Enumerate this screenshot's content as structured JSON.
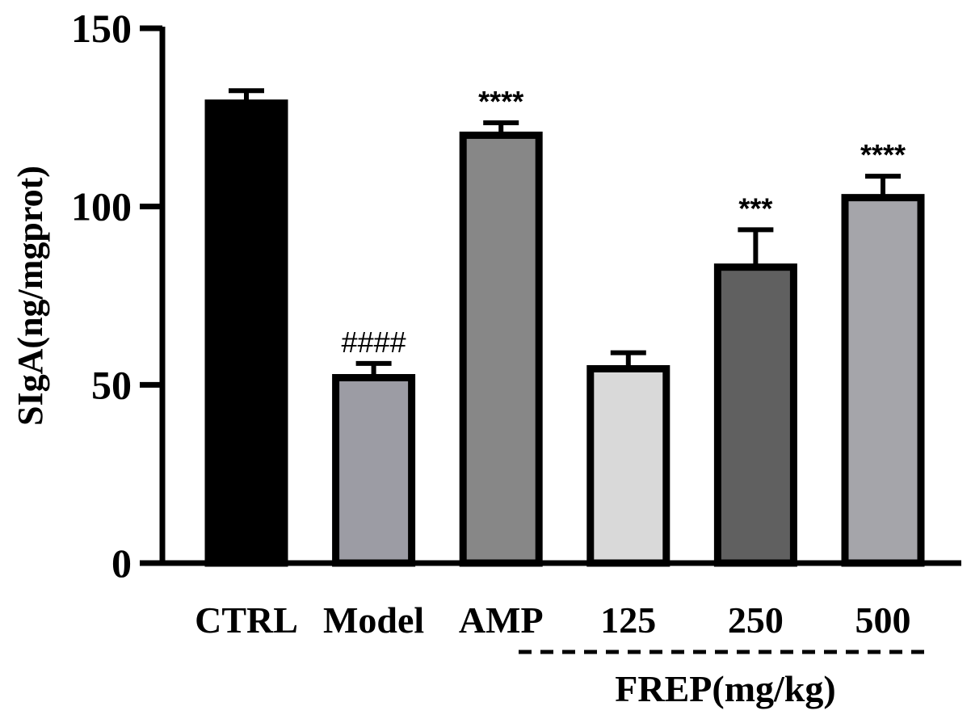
{
  "chart_data": {
    "type": "bar",
    "ylabel": "SIgA(ng/mgprot)",
    "ylim": [
      0,
      150
    ],
    "yticks": [
      0,
      50,
      100,
      150
    ],
    "categories": [
      "CTRL",
      "Model",
      "AMP",
      "125",
      "250",
      "500"
    ],
    "values": [
      129,
      52,
      120,
      54.5,
      83,
      102.5
    ],
    "errors": [
      3.5,
      4,
      3.5,
      4.5,
      10.5,
      6
    ],
    "colors": [
      "#000000",
      "#9c9ca4",
      "#878787",
      "#d9d9d9",
      "#606060",
      "#a5a5aa"
    ],
    "significance": [
      "",
      "####",
      "****",
      "",
      "***",
      "****"
    ],
    "group_label": "FREP(mg/kg)",
    "grid": false
  }
}
